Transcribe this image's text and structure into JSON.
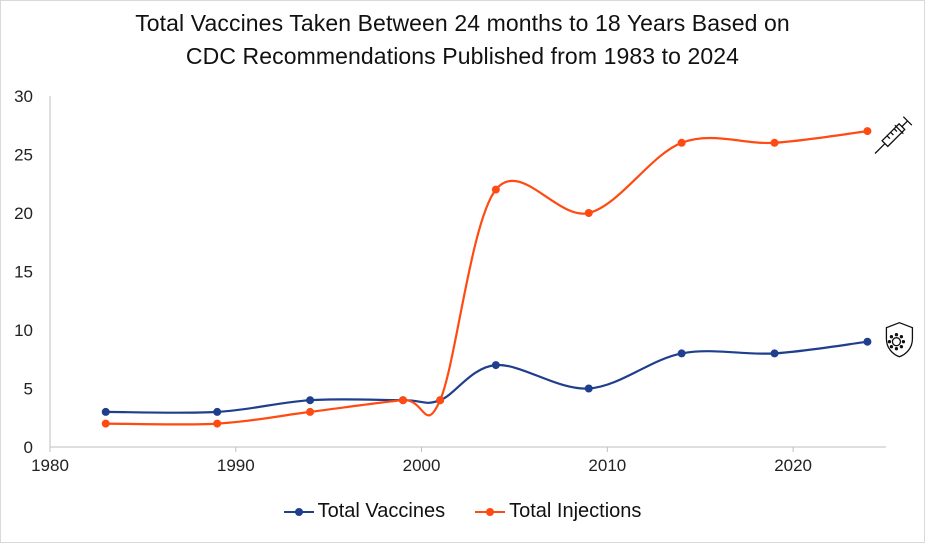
{
  "chart_data": {
    "type": "line",
    "title_line1": "Total Vaccines Taken Between 24 months to 18 Years Based on",
    "title_line2": "CDC Recommendations Published from 1983 to 2024",
    "xlim": [
      1980,
      2025
    ],
    "ylim": [
      0,
      30
    ],
    "x_ticks": [
      1980,
      1990,
      2000,
      2010,
      2020
    ],
    "y_ticks": [
      0,
      5,
      10,
      15,
      20,
      25,
      30
    ],
    "gridlines": false,
    "legend_position": "bottom",
    "series": [
      {
        "name": "Total Vaccines",
        "color": "#1f3e8c",
        "icon": "shield-virus-icon",
        "x": [
          1983,
          1989,
          1994,
          1999,
          2001,
          2004,
          2009,
          2014,
          2019,
          2024
        ],
        "y": [
          3,
          3,
          4,
          4,
          4,
          7,
          5,
          8,
          8,
          9
        ]
      },
      {
        "name": "Total Injections",
        "color": "#ff4a12",
        "icon": "syringe-icon",
        "x": [
          1983,
          1989,
          1994,
          1999,
          2001,
          2004,
          2009,
          2014,
          2019,
          2024
        ],
        "y": [
          2,
          2,
          3,
          4,
          4,
          22,
          20,
          26,
          26,
          27
        ]
      }
    ]
  }
}
